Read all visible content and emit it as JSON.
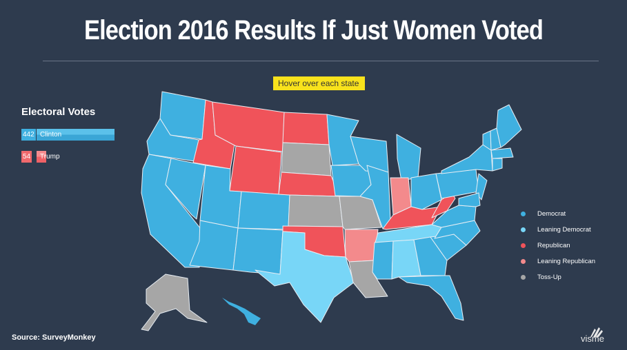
{
  "title": "Election 2016 Results If Just Women Voted",
  "hover_tip": "Hover over each state",
  "electoral_votes": {
    "heading": "Electoral Votes",
    "rows": [
      {
        "candidate": "Clinton",
        "votes": "442",
        "value": 442,
        "color": "#3fb0e0"
      },
      {
        "candidate": "Trump",
        "votes": "54",
        "value": 54,
        "color": "#f0696d"
      }
    ]
  },
  "colors": {
    "democrat": "#3fb0e0",
    "leaning_democrat": "#78d6f7",
    "republican": "#f0535a",
    "leaning_republican": "#f38a8c",
    "toss_up": "#a6a6a6",
    "background": "#2e3b4e"
  },
  "legend": [
    {
      "label": "Democrat",
      "color": "#3fb0e0"
    },
    {
      "label": "Leaning Democrat",
      "color": "#78d6f7"
    },
    {
      "label": "Republican",
      "color": "#f0535a"
    },
    {
      "label": "Leaning Republican",
      "color": "#f38a8c"
    },
    {
      "label": "Toss-Up",
      "color": "#a6a6a6"
    }
  ],
  "states": {
    "democrat": [
      "WA",
      "OR",
      "CA",
      "NV",
      "AZ",
      "UT",
      "CO",
      "NM",
      "MN",
      "WI",
      "IA",
      "IL",
      "MI",
      "MO?",
      "MS",
      "GA",
      "FL",
      "SC",
      "NC",
      "VA",
      "OH",
      "PA",
      "NY",
      "ME",
      "VT",
      "NH",
      "MA",
      "CT",
      "RI",
      "NJ",
      "DE",
      "MD",
      "HI"
    ],
    "leaning_democrat": [
      "TX",
      "AL",
      "TN"
    ],
    "republican": [
      "ID",
      "MT",
      "WY",
      "ND",
      "NE",
      "OK",
      "KY",
      "WV"
    ],
    "leaning_republican": [
      "IN",
      "AR"
    ],
    "toss_up": [
      "SD",
      "KS",
      "MO",
      "LA",
      "AK"
    ]
  },
  "source": "Source: SurveyMonkey",
  "brand": "visme"
}
